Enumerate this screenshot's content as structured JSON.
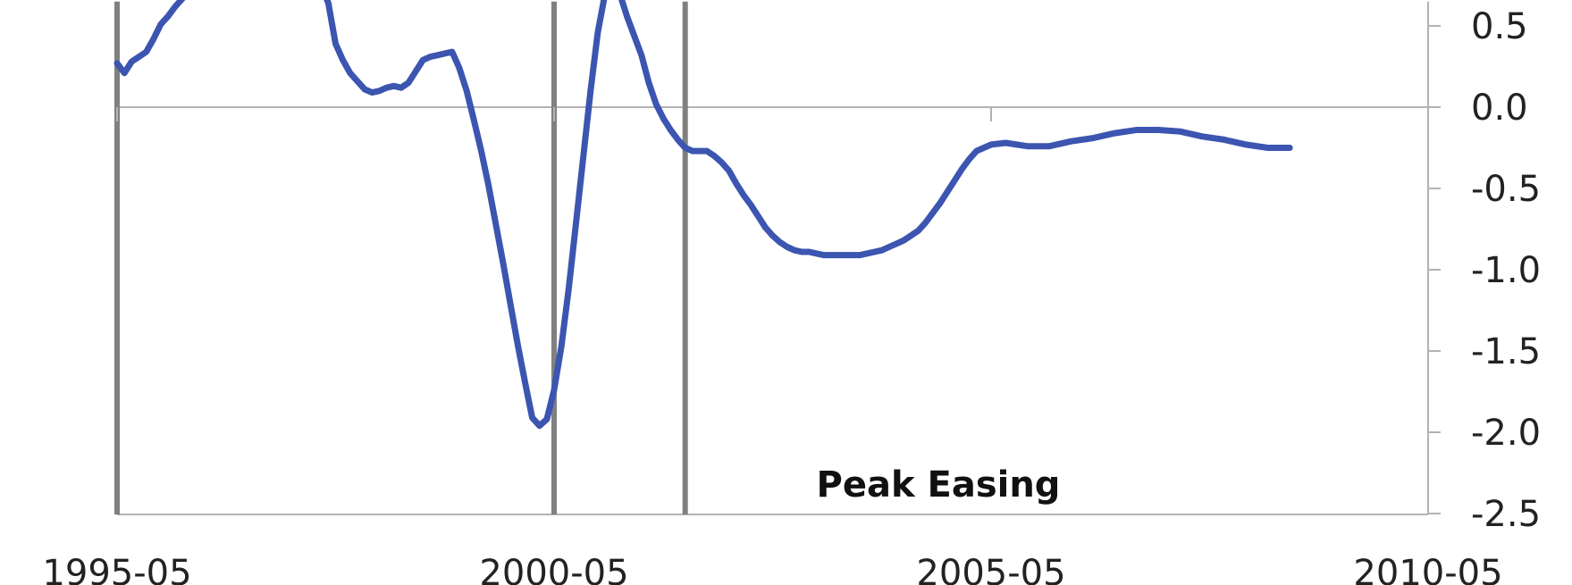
{
  "chart_data": {
    "type": "line",
    "title": "",
    "xlabel": "",
    "ylabel": "",
    "x_ticks": [
      "1995-05",
      "2000-05",
      "2005-05",
      "2010-05"
    ],
    "x_range": [
      "1995-05",
      "2010-05"
    ],
    "y_ticks": [
      "0.5",
      "0.0",
      "-0.5",
      "-1.0",
      "-1.5",
      "-2.0",
      "-2.5"
    ],
    "ylim": [
      -2.5,
      0.65
    ],
    "y_axis_position": "right",
    "grid": false,
    "vertical_markers": [
      "1995-05",
      "2000-05",
      "2001-11"
    ],
    "annotation": "Peak Easing",
    "series": [
      {
        "color": "#3b55b0",
        "points": [
          [
            "1995-05",
            0.27
          ],
          [
            "1995-06",
            0.21
          ],
          [
            "1995-07",
            0.28
          ],
          [
            "1995-08",
            0.31
          ],
          [
            "1995-09",
            0.34
          ],
          [
            "1995-10",
            0.42
          ],
          [
            "1995-11",
            0.51
          ],
          [
            "1995-12",
            0.56
          ],
          [
            "1996-01",
            0.62
          ],
          [
            "1996-02",
            0.67
          ],
          [
            "1996-03",
            0.75
          ],
          [
            "1997-09",
            0.75
          ],
          [
            "1997-10",
            0.64
          ],
          [
            "1997-11",
            0.39
          ],
          [
            "1997-12",
            0.29
          ],
          [
            "1998-01",
            0.21
          ],
          [
            "1998-02",
            0.16
          ],
          [
            "1998-03",
            0.11
          ],
          [
            "1998-04",
            0.09
          ],
          [
            "1998-05",
            0.1
          ],
          [
            "1998-06",
            0.12
          ],
          [
            "1998-07",
            0.13
          ],
          [
            "1998-08",
            0.12
          ],
          [
            "1998-09",
            0.15
          ],
          [
            "1998-10",
            0.22
          ],
          [
            "1998-11",
            0.29
          ],
          [
            "1998-12",
            0.31
          ],
          [
            "1999-01",
            0.32
          ],
          [
            "1999-02",
            0.33
          ],
          [
            "1999-03",
            0.34
          ],
          [
            "1999-04",
            0.24
          ],
          [
            "1999-05",
            0.1
          ],
          [
            "1999-06",
            -0.08
          ],
          [
            "1999-07",
            -0.27
          ],
          [
            "1999-08",
            -0.48
          ],
          [
            "1999-09",
            -0.72
          ],
          [
            "1999-10",
            -0.96
          ],
          [
            "1999-11",
            -1.21
          ],
          [
            "1999-12",
            -1.46
          ],
          [
            "2000-01",
            -1.69
          ],
          [
            "2000-02",
            -1.91
          ],
          [
            "2000-03",
            -1.96
          ],
          [
            "2000-04",
            -1.92
          ],
          [
            "2000-05",
            -1.74
          ],
          [
            "2000-06",
            -1.47
          ],
          [
            "2000-07",
            -1.12
          ],
          [
            "2000-08",
            -0.72
          ],
          [
            "2000-09",
            -0.31
          ],
          [
            "2000-10",
            0.1
          ],
          [
            "2000-11",
            0.46
          ],
          [
            "2000-12",
            0.7
          ],
          [
            "2001-01",
            0.75
          ],
          [
            "2001-02",
            0.7
          ],
          [
            "2001-03",
            0.56
          ],
          [
            "2001-04",
            0.44
          ],
          [
            "2001-05",
            0.32
          ],
          [
            "2001-06",
            0.15
          ],
          [
            "2001-07",
            0.02
          ],
          [
            "2001-08",
            -0.07
          ],
          [
            "2001-09",
            -0.14
          ],
          [
            "2001-10",
            -0.2
          ],
          [
            "2001-11",
            -0.25
          ],
          [
            "2001-12",
            -0.27
          ],
          [
            "2002-01",
            -0.27
          ],
          [
            "2002-02",
            -0.27
          ],
          [
            "2002-03",
            -0.3
          ],
          [
            "2002-04",
            -0.34
          ],
          [
            "2002-05",
            -0.39
          ],
          [
            "2002-06",
            -0.47
          ],
          [
            "2002-07",
            -0.54
          ],
          [
            "2002-08",
            -0.6
          ],
          [
            "2002-09",
            -0.67
          ],
          [
            "2002-10",
            -0.74
          ],
          [
            "2002-11",
            -0.79
          ],
          [
            "2002-12",
            -0.83
          ],
          [
            "2003-01",
            -0.86
          ],
          [
            "2003-02",
            -0.88
          ],
          [
            "2003-03",
            -0.89
          ],
          [
            "2003-04",
            -0.89
          ],
          [
            "2003-05",
            -0.9
          ],
          [
            "2003-06",
            -0.91
          ],
          [
            "2003-07",
            -0.91
          ],
          [
            "2003-08",
            -0.91
          ],
          [
            "2003-09",
            -0.91
          ],
          [
            "2003-10",
            -0.91
          ],
          [
            "2003-11",
            -0.91
          ],
          [
            "2003-12",
            -0.9
          ],
          [
            "2004-01",
            -0.89
          ],
          [
            "2004-02",
            -0.88
          ],
          [
            "2004-03",
            -0.86
          ],
          [
            "2004-04",
            -0.84
          ],
          [
            "2004-05",
            -0.82
          ],
          [
            "2004-06",
            -0.79
          ],
          [
            "2004-07",
            -0.76
          ],
          [
            "2004-08",
            -0.71
          ],
          [
            "2004-09",
            -0.65
          ],
          [
            "2004-10",
            -0.59
          ],
          [
            "2004-11",
            -0.52
          ],
          [
            "2004-12",
            -0.45
          ],
          [
            "2005-01",
            -0.38
          ],
          [
            "2005-02",
            -0.32
          ],
          [
            "2005-03",
            -0.27
          ],
          [
            "2005-04",
            -0.25
          ],
          [
            "2005-05",
            -0.23
          ],
          [
            "2005-07",
            -0.22
          ],
          [
            "2005-10",
            -0.24
          ],
          [
            "2006-01",
            -0.24
          ],
          [
            "2006-04",
            -0.21
          ],
          [
            "2006-07",
            -0.19
          ],
          [
            "2006-10",
            -0.16
          ],
          [
            "2007-01",
            -0.14
          ],
          [
            "2007-04",
            -0.14
          ],
          [
            "2007-07",
            -0.15
          ],
          [
            "2007-10",
            -0.18
          ],
          [
            "2008-01",
            -0.2
          ],
          [
            "2008-04",
            -0.23
          ],
          [
            "2008-07",
            -0.25
          ],
          [
            "2008-10",
            -0.25
          ]
        ]
      }
    ]
  }
}
